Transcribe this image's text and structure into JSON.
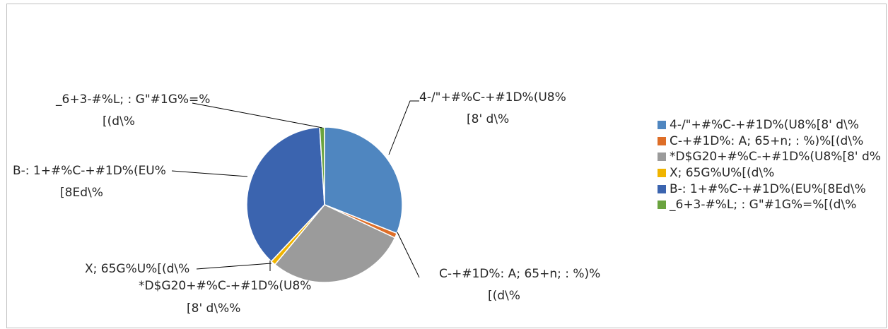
{
  "chart_data": {
    "type": "pie",
    "categories": [
      "4-/\"+#%C-+#1D%(U8%[8' d\\%",
      "C-+#1D%: A; 65+n; : %)%[(d\\%",
      "*D$G20+#%C-+#1D%(U8%[8' d\\%",
      "X; 65G%U%[(d\\%",
      "B-: 1+#%C-+#1D%(EU%[8Ed\\%",
      "_6+3-#%L; : G\"#1G%=%[(d\\%"
    ],
    "values": [
      31.0,
      1.0,
      29.0,
      1.0,
      37.0,
      1.0
    ],
    "colors": [
      "#4f86c0",
      "#de6e28",
      "#9b9b9b",
      "#f0b400",
      "#3b64af",
      "#6aa33f"
    ],
    "data_labels": [
      [
        "4-/\"+#%C-+#1D%(U8%",
        "[8' d\\%"
      ],
      [
        "C-+#1D%: A; 65+n; : %)%",
        "[(d\\%"
      ],
      [
        "*D$G20+#%C-+#1D%(U8%",
        "[8' d\\%%"
      ],
      [
        "X; 65G%U%[(d\\%"
      ],
      [
        "B-: 1+#%C-+#1D%(EU%",
        "[8Ed\\%"
      ],
      [
        "_6+3-#%L; : G\"#1G%=%",
        "[(d\\%"
      ]
    ],
    "legend_labels": [
      "4-/\"+#%C-+#1D%(U8%[8' d\\%",
      "C-+#1D%: A; 65+n; : %)%[(d\\%",
      "*D$G20+#%C-+#1D%(U8%[8' d%",
      "X; 65G%U%[(d\\%",
      "B-: 1+#%C-+#1D%(EU%[8Ed\\%",
      "_6+3-#%L; : G\"#1G%=%[(d\\%"
    ],
    "legend_position": "right"
  }
}
